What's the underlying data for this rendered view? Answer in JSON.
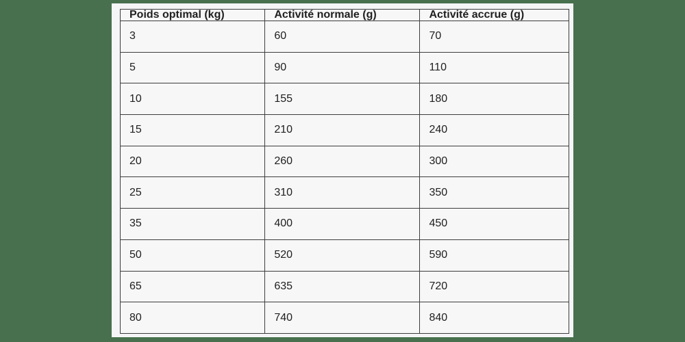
{
  "colors": {
    "background": "#48704E",
    "card": "#f5f5f7",
    "cell": "#f7f7f8",
    "border": "#3c3c3c",
    "text": "#202020"
  },
  "table": {
    "headers": [
      "Poids optimal (kg)",
      "Activité normale (g)",
      "Activité accrue (g)"
    ],
    "rows": [
      [
        "3",
        "60",
        "70"
      ],
      [
        "5",
        "90",
        "110"
      ],
      [
        "10",
        "155",
        "180"
      ],
      [
        "15",
        "210",
        "240"
      ],
      [
        "20",
        "260",
        "300"
      ],
      [
        "25",
        "310",
        "350"
      ],
      [
        "35",
        "400",
        "450"
      ],
      [
        "50",
        "520",
        "590"
      ],
      [
        "65",
        "635",
        "720"
      ],
      [
        "80",
        "740",
        "840"
      ]
    ]
  },
  "chart_data": {
    "type": "table",
    "title": "",
    "columns": [
      "Poids optimal (kg)",
      "Activité normale (g)",
      "Activité accrue (g)"
    ],
    "rows": [
      [
        3,
        60,
        70
      ],
      [
        5,
        90,
        110
      ],
      [
        10,
        155,
        180
      ],
      [
        15,
        210,
        240
      ],
      [
        20,
        260,
        300
      ],
      [
        25,
        310,
        350
      ],
      [
        35,
        400,
        450
      ],
      [
        50,
        520,
        590
      ],
      [
        65,
        635,
        720
      ],
      [
        80,
        740,
        840
      ]
    ],
    "layout": {
      "grid": true,
      "header_bold": true,
      "text_align": "left"
    }
  }
}
